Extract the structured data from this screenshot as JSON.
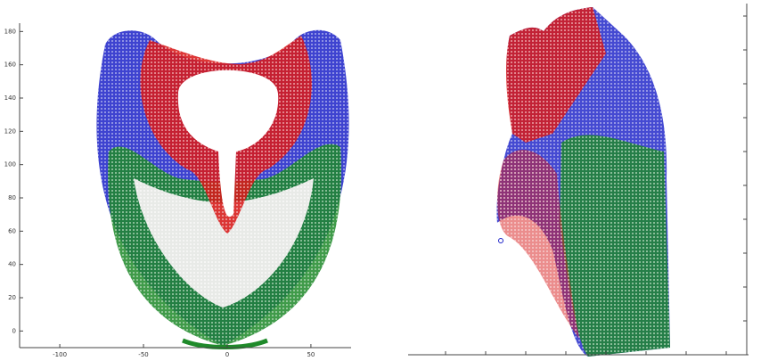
{
  "chart_data": {
    "type": "scatter",
    "xlim": [
      -124,
      74
    ],
    "xticks": [
      -100,
      -50,
      0,
      50
    ],
    "ylim": [
      -10,
      185
    ],
    "yticks": [
      0,
      20,
      40,
      60,
      80,
      100,
      120,
      140,
      160,
      180
    ],
    "colors": [
      "#d81b1b",
      "#1c22c8",
      "#1f8a2a"
    ]
  }
}
